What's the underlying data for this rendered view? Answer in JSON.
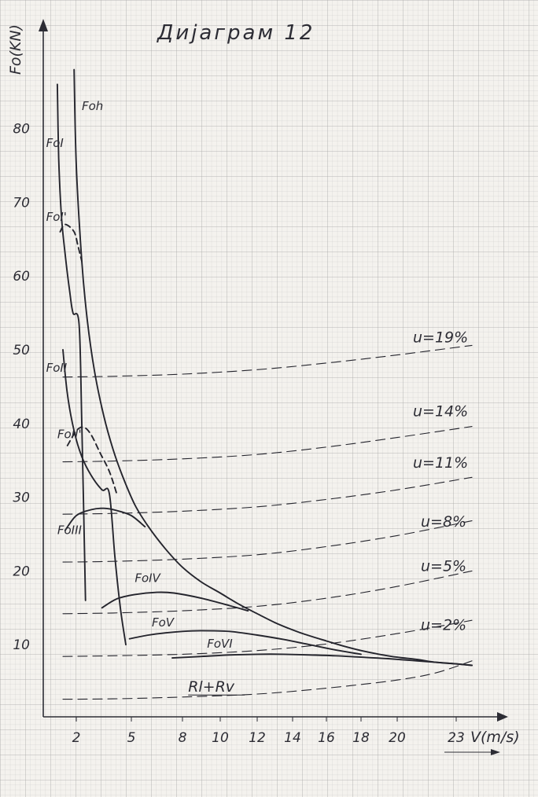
{
  "chart_data": {
    "type": "line",
    "title": "Дијаграм 12",
    "xlabel": "V(m/s)",
    "ylabel": "Fo(KN)",
    "xlim": [
      0,
      26
    ],
    "ylim": [
      0,
      88
    ],
    "x_ticks": [
      {
        "value": 2,
        "label": "2"
      },
      {
        "value": 5,
        "label": "5"
      },
      {
        "value": 8,
        "label": "8"
      },
      {
        "value": 10,
        "label": "10"
      },
      {
        "value": 12,
        "label": "12"
      },
      {
        "value": 14,
        "label": "14"
      },
      {
        "value": 16,
        "label": "16"
      },
      {
        "value": 18,
        "label": "18"
      },
      {
        "value": 20,
        "label": "20"
      },
      {
        "value": 23,
        "label": "23"
      }
    ],
    "y_ticks": [
      {
        "value": 10,
        "label": "10"
      },
      {
        "value": 20,
        "label": "20"
      },
      {
        "value": 30,
        "label": "30"
      },
      {
        "value": 40,
        "label": "40"
      },
      {
        "value": 50,
        "label": "50"
      },
      {
        "value": 60,
        "label": "60"
      },
      {
        "value": 70,
        "label": "70"
      },
      {
        "value": 80,
        "label": "80"
      }
    ],
    "grid": true,
    "series": [
      {
        "name": "Foh",
        "style": "solid",
        "label_at": [
          2.3,
          82.5
        ],
        "points": [
          [
            1.9,
            88
          ],
          [
            2.0,
            75
          ],
          [
            2.3,
            62
          ],
          [
            2.6,
            54
          ],
          [
            3.0,
            47
          ],
          [
            3.5,
            41
          ],
          [
            4.0,
            36.5
          ],
          [
            4.5,
            33
          ],
          [
            5.2,
            29
          ],
          [
            6,
            26
          ],
          [
            7,
            23
          ],
          [
            8,
            20.5
          ],
          [
            9,
            18.5
          ],
          [
            10,
            17
          ],
          [
            11,
            15.5
          ],
          [
            12,
            14.2
          ],
          [
            13,
            13
          ],
          [
            14,
            12
          ],
          [
            15,
            11.2
          ],
          [
            16,
            10.5
          ],
          [
            17,
            9.8
          ],
          [
            18,
            9.2
          ],
          [
            19,
            8.7
          ],
          [
            20,
            8.3
          ],
          [
            21,
            8.0
          ],
          [
            22,
            7.6
          ],
          [
            23,
            7.4
          ],
          [
            24,
            7.2
          ]
        ]
      },
      {
        "name": "FoI",
        "style": "solid",
        "label_at": [
          0.2,
          77.5
        ],
        "points": [
          [
            1.0,
            86
          ],
          [
            1.1,
            76
          ],
          [
            1.3,
            68
          ],
          [
            1.5,
            63
          ],
          [
            1.7,
            58
          ],
          [
            1.85,
            55
          ],
          [
            2.15,
            53.5
          ],
          [
            2.3,
            40
          ],
          [
            2.5,
            16
          ]
        ]
      },
      {
        "name": "FoI'",
        "style": "dashed",
        "label_at": [
          0.2,
          67.5
        ],
        "points": [
          [
            1.2,
            66
          ],
          [
            1.5,
            67
          ],
          [
            1.9,
            66
          ],
          [
            2.1,
            64
          ],
          [
            2.3,
            62
          ]
        ]
      },
      {
        "name": "FoII",
        "style": "solid",
        "label_at": [
          0.2,
          47
        ],
        "points": [
          [
            1.4,
            50
          ],
          [
            1.6,
            44
          ],
          [
            1.9,
            39
          ],
          [
            2.3,
            35.5
          ],
          [
            2.8,
            33
          ],
          [
            3.4,
            31
          ],
          [
            3.8,
            30.5
          ],
          [
            4.1,
            22
          ],
          [
            4.4,
            15
          ],
          [
            4.7,
            10
          ]
        ]
      },
      {
        "name": "FoII'",
        "style": "dashed",
        "label_at": [
          1.0,
          38
        ],
        "points": [
          [
            1.6,
            37
          ],
          [
            2.0,
            39
          ],
          [
            2.4,
            39.5
          ],
          [
            2.8,
            38.5
          ],
          [
            3.3,
            36
          ],
          [
            3.8,
            33.5
          ],
          [
            4.2,
            30.5
          ]
        ]
      },
      {
        "name": "FoIII",
        "style": "solid",
        "label_at": [
          1.0,
          25
        ],
        "points": [
          [
            1.5,
            25.5
          ],
          [
            2.0,
            27.5
          ],
          [
            2.8,
            28.3
          ],
          [
            3.5,
            28.5
          ],
          [
            4.2,
            28.2
          ],
          [
            5.0,
            27.5
          ],
          [
            5.8,
            26
          ]
        ]
      },
      {
        "name": "FoIV",
        "style": "solid",
        "label_at": [
          5.2,
          18.5
        ],
        "points": [
          [
            3.4,
            15
          ],
          [
            4.2,
            16.2
          ],
          [
            5.2,
            16.8
          ],
          [
            6.5,
            17.1
          ],
          [
            7.5,
            17
          ],
          [
            9,
            16.3
          ],
          [
            10.5,
            15.3
          ],
          [
            11.5,
            14.6
          ]
        ]
      },
      {
        "name": "FoV",
        "style": "solid",
        "label_at": [
          6.2,
          12.5
        ],
        "points": [
          [
            4.9,
            10.8
          ],
          [
            6,
            11.3
          ],
          [
            7,
            11.6
          ],
          [
            8,
            11.8
          ],
          [
            9,
            11.9
          ],
          [
            10.5,
            11.8
          ],
          [
            12,
            11.3
          ],
          [
            13.5,
            10.7
          ],
          [
            15,
            10
          ],
          [
            16.5,
            9.3
          ],
          [
            18,
            8.7
          ]
        ]
      },
      {
        "name": "FoVI",
        "style": "solid",
        "label_at": [
          9.3,
          9.6
        ],
        "points": [
          [
            7.4,
            8.2
          ],
          [
            9,
            8.4
          ],
          [
            10.5,
            8.6
          ],
          [
            12,
            8.7
          ],
          [
            13.5,
            8.7
          ],
          [
            15,
            8.6
          ],
          [
            16.5,
            8.5
          ],
          [
            18,
            8.3
          ],
          [
            19.5,
            8.1
          ],
          [
            21,
            7.8
          ],
          [
            22.5,
            7.5
          ],
          [
            24,
            7.2
          ]
        ]
      },
      {
        "name": "u=19%",
        "style": "dashed",
        "label_at": [
          20.8,
          51
        ],
        "points": [
          [
            1.4,
            46.3
          ],
          [
            4,
            46.4
          ],
          [
            8,
            46.7
          ],
          [
            12,
            47.3
          ],
          [
            16,
            48.2
          ],
          [
            20,
            49.3
          ],
          [
            24,
            50.6
          ]
        ]
      },
      {
        "name": "u=14%",
        "style": "dashed",
        "label_at": [
          20.8,
          41
        ],
        "points": [
          [
            1.4,
            34.8
          ],
          [
            4,
            34.9
          ],
          [
            8,
            35.2
          ],
          [
            12,
            35.8
          ],
          [
            16,
            36.8
          ],
          [
            20,
            38.1
          ],
          [
            24,
            39.6
          ]
        ]
      },
      {
        "name": "u=11%",
        "style": "dashed",
        "label_at": [
          20.8,
          34
        ],
        "points": [
          [
            1.4,
            27.7
          ],
          [
            4,
            27.8
          ],
          [
            8,
            28.1
          ],
          [
            12,
            28.7
          ],
          [
            16,
            29.7
          ],
          [
            20,
            31
          ],
          [
            24,
            32.7
          ]
        ]
      },
      {
        "name": "u=8%",
        "style": "dashed",
        "label_at": [
          21.2,
          26
        ],
        "points": [
          [
            1.4,
            21.2
          ],
          [
            4,
            21.3
          ],
          [
            8,
            21.6
          ],
          [
            12,
            22.2
          ],
          [
            16,
            23.3
          ],
          [
            20,
            24.8
          ],
          [
            24,
            26.8
          ]
        ]
      },
      {
        "name": "u=5%",
        "style": "dashed",
        "label_at": [
          21.2,
          20
        ],
        "points": [
          [
            1.4,
            14.2
          ],
          [
            4,
            14.3
          ],
          [
            8,
            14.6
          ],
          [
            12,
            15.2
          ],
          [
            16,
            16.3
          ],
          [
            20,
            17.9
          ],
          [
            24,
            20
          ]
        ]
      },
      {
        "name": "u=2%",
        "style": "dashed",
        "label_at": [
          21.2,
          12
        ],
        "points": [
          [
            1.4,
            8.4
          ],
          [
            4,
            8.5
          ],
          [
            8,
            8.7
          ],
          [
            12,
            9.2
          ],
          [
            16,
            10.1
          ],
          [
            20,
            11.5
          ],
          [
            24,
            13.3
          ]
        ]
      },
      {
        "name": "Rl+Rv",
        "style": "dashed",
        "label_at": [
          8.3,
          3.6
        ],
        "points": [
          [
            1.4,
            2.6
          ],
          [
            4,
            2.65
          ],
          [
            8,
            2.9
          ],
          [
            12,
            3.3
          ],
          [
            16,
            4.1
          ],
          [
            20,
            5.2
          ],
          [
            22,
            6.2
          ],
          [
            24,
            7.8
          ]
        ]
      }
    ]
  }
}
